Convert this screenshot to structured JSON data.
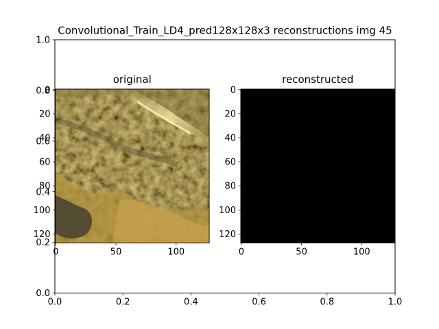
{
  "title": "Convolutional_Train_LD4_pred128x128x3 reconstructions img 45",
  "colors": {
    "background": "#ffffff",
    "axes_edge": "#000000",
    "reconstructed_fill": "#000000"
  },
  "chart_data": [
    {
      "type": "line",
      "role": "outer-empty-axes",
      "xlim": [
        0.0,
        1.0
      ],
      "ylim": [
        0.0,
        1.0
      ],
      "xticks": [
        "0.0",
        "0.2",
        "0.4",
        "0.6",
        "0.8",
        "1.0"
      ],
      "yticks": [
        "0.0",
        "0.2",
        "0.4",
        "0.6",
        "0.8",
        "1.0"
      ],
      "grid": false
    },
    {
      "type": "heatmap",
      "title": "original",
      "image": "photo-texture",
      "xlim": [
        0,
        127
      ],
      "ylim": [
        127,
        0
      ],
      "xticks": [
        "0",
        "50",
        "100"
      ],
      "yticks": [
        "0",
        "20",
        "40",
        "60",
        "80",
        "100",
        "120"
      ],
      "grid": false
    },
    {
      "type": "heatmap",
      "title": "reconstructed",
      "image": "solid-black",
      "xlim": [
        0,
        127
      ],
      "ylim": [
        127,
        0
      ],
      "xticks": [
        "0",
        "50",
        "100"
      ],
      "yticks": [
        "0",
        "20",
        "40",
        "60",
        "80",
        "100",
        "120"
      ],
      "grid": false
    }
  ]
}
